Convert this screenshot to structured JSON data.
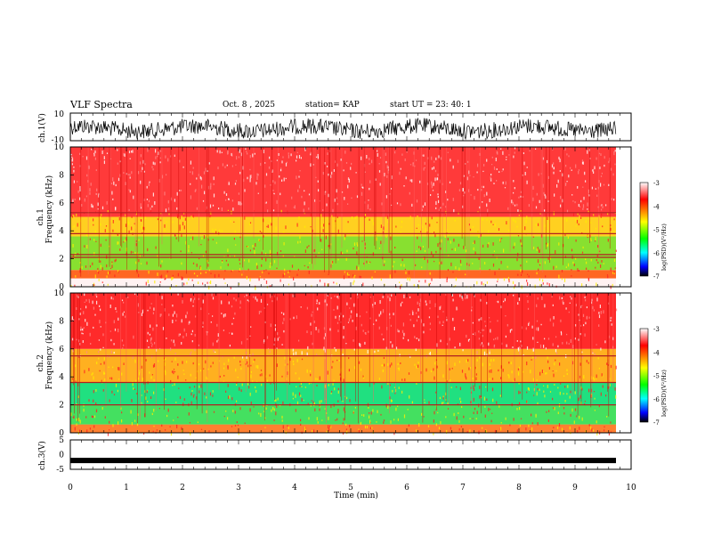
{
  "header": {
    "title": "VLF Spectra",
    "date": "Oct. 8 , 2025",
    "station": "station= KAP",
    "start": "start UT = 23: 40: 1"
  },
  "colors": {
    "background": "#ffffff",
    "waveform": "#000000",
    "spectrum_high": "#ff1a1a",
    "spectrum_mid": "#e8e800",
    "spectrum_low": "#22dd44",
    "colorbar_stops": [
      "#ffffff",
      "#ff0000",
      "#ffff00",
      "#00ff00",
      "#00ffff",
      "#0000ff",
      "#000000"
    ]
  },
  "chart_data": [
    {
      "type": "line",
      "name": "ch1-waveform",
      "ylabel": "ch.1(V)",
      "ylim": [
        -10,
        10
      ],
      "yticks": [
        "10",
        "-10"
      ],
      "xlim": [
        0,
        10
      ],
      "description_values": "noise waveform roughly between -5 and 5 V across full span"
    },
    {
      "type": "heatmap",
      "name": "ch1-spectrogram",
      "ylabel_top": "ch.1",
      "ylabel": "Frequency (kHz)",
      "ylim": [
        0,
        10
      ],
      "yticks": [
        "0",
        "2",
        "4",
        "6",
        "8",
        "10"
      ],
      "xlim": [
        0,
        9.8
      ],
      "colorbar": {
        "label": "log(PSD)(V²/Hz)",
        "ticks": [
          "-3",
          "-4",
          "-5",
          "-6",
          "-7"
        ],
        "range": [
          -7,
          -3
        ]
      },
      "bands": [
        {
          "from": 0,
          "to": 0.6,
          "level": "white"
        },
        {
          "from": 0.6,
          "to": 1.2,
          "level": "red-yellow"
        },
        {
          "from": 1.2,
          "to": 3.6,
          "level": "green-yellow"
        },
        {
          "from": 3.6,
          "to": 5.0,
          "level": "yellow-red"
        },
        {
          "from": 5.0,
          "to": 10,
          "level": "red-white"
        }
      ],
      "lines_khz": [
        2.1,
        2.3,
        3.8,
        5.3
      ]
    },
    {
      "type": "heatmap",
      "name": "ch2-spectrogram",
      "ylabel_top": "ch.2",
      "ylabel": "Frequency (kHz)",
      "ylim": [
        0,
        10
      ],
      "yticks": [
        "0",
        "2",
        "4",
        "6",
        "8",
        "10"
      ],
      "xlim": [
        0,
        9.8
      ],
      "colorbar": {
        "label": "log(PSD)(V²/Hz)",
        "ticks": [
          "-3",
          "-4",
          "-5",
          "-6",
          "-7"
        ],
        "range": [
          -7,
          -3
        ]
      },
      "bands": [
        {
          "from": 0,
          "to": 0.6,
          "level": "red-yellow"
        },
        {
          "from": 0.6,
          "to": 2.0,
          "level": "green"
        },
        {
          "from": 2.0,
          "to": 3.6,
          "level": "green-cyan"
        },
        {
          "from": 3.6,
          "to": 6.0,
          "level": "yellow-red"
        },
        {
          "from": 6.0,
          "to": 10,
          "level": "red"
        }
      ],
      "lines_khz": [
        2.0,
        3.6,
        5.5
      ]
    },
    {
      "type": "line",
      "name": "ch3-signal",
      "ylabel": "ch.3(V)",
      "ylim": [
        -5,
        5
      ],
      "yticks": [
        "5",
        "0",
        "-5"
      ],
      "xlim": [
        0,
        10
      ],
      "value_approx": -2,
      "xlabel": "Time (min)",
      "xticks": [
        "0",
        "1",
        "2",
        "3",
        "4",
        "5",
        "6",
        "7",
        "8",
        "9",
        "10"
      ]
    }
  ]
}
